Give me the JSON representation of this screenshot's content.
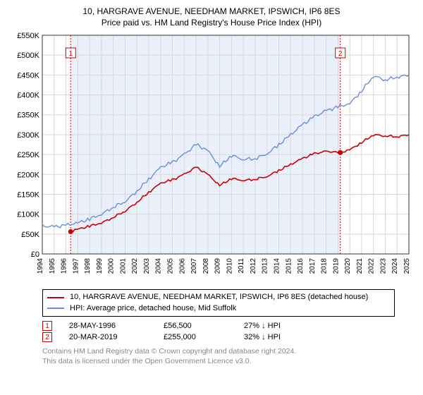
{
  "title_line1": "10, HARGRAVE AVENUE, NEEDHAM MARKET, IPSWICH, IP6 8ES",
  "title_line2": "Price paid vs. HM Land Registry's House Price Index (HPI)",
  "chart": {
    "type": "line",
    "background_color": "#ffffff",
    "plot_bg_shaded": "#e9f0fa",
    "plot_bg_unshaded": "#ffffff",
    "grid_color": "#d8d8d8",
    "axis_color": "#333333",
    "y": {
      "label_prefix": "£",
      "min": 0,
      "max": 550,
      "step": 50,
      "ticks": [
        "£0",
        "£50K",
        "£100K",
        "£150K",
        "£200K",
        "£250K",
        "£300K",
        "£350K",
        "£400K",
        "£450K",
        "£500K",
        "£550K"
      ]
    },
    "x": {
      "years": [
        1994,
        1995,
        1996,
        1997,
        1998,
        1999,
        2000,
        2001,
        2002,
        2003,
        2004,
        2005,
        2006,
        2007,
        2008,
        2009,
        2010,
        2011,
        2012,
        2013,
        2014,
        2015,
        2016,
        2017,
        2018,
        2019,
        2020,
        2021,
        2022,
        2023,
        2024,
        2025
      ]
    },
    "shaded_range": {
      "from_year": 1996.4,
      "to_year": 2019.2
    },
    "series": [
      {
        "name": "address",
        "color": "#cc0000",
        "width": 1.6,
        "points": [
          [
            1996.4,
            56
          ],
          [
            1997,
            62
          ],
          [
            1998,
            70
          ],
          [
            1999,
            78
          ],
          [
            2000,
            92
          ],
          [
            2001,
            108
          ],
          [
            2002,
            130
          ],
          [
            2003,
            155
          ],
          [
            2004,
            178
          ],
          [
            2005,
            186
          ],
          [
            2006,
            200
          ],
          [
            2007,
            218
          ],
          [
            2008,
            200
          ],
          [
            2009,
            172
          ],
          [
            2010,
            190
          ],
          [
            2011,
            185
          ],
          [
            2012,
            188
          ],
          [
            2013,
            195
          ],
          [
            2014,
            210
          ],
          [
            2015,
            225
          ],
          [
            2016,
            240
          ],
          [
            2017,
            252
          ],
          [
            2018,
            258
          ],
          [
            2019.2,
            255
          ],
          [
            2020,
            262
          ],
          [
            2021,
            280
          ],
          [
            2022,
            300
          ],
          [
            2023,
            297
          ],
          [
            2024,
            295
          ],
          [
            2025,
            300
          ]
        ]
      },
      {
        "name": "hpi",
        "color": "#6a8fd8",
        "width": 1.4,
        "points": [
          [
            1994,
            70
          ],
          [
            1995,
            68
          ],
          [
            1996,
            72
          ],
          [
            1997,
            78
          ],
          [
            1998,
            88
          ],
          [
            1999,
            100
          ],
          [
            2000,
            118
          ],
          [
            2001,
            132
          ],
          [
            2002,
            158
          ],
          [
            2003,
            188
          ],
          [
            2004,
            218
          ],
          [
            2005,
            230
          ],
          [
            2006,
            250
          ],
          [
            2007,
            275
          ],
          [
            2008,
            260
          ],
          [
            2009,
            220
          ],
          [
            2010,
            248
          ],
          [
            2011,
            238
          ],
          [
            2012,
            240
          ],
          [
            2013,
            252
          ],
          [
            2014,
            275
          ],
          [
            2015,
            300
          ],
          [
            2016,
            325
          ],
          [
            2017,
            345
          ],
          [
            2018,
            360
          ],
          [
            2019,
            370
          ],
          [
            2020,
            378
          ],
          [
            2021,
            410
          ],
          [
            2022,
            448
          ],
          [
            2023,
            438
          ],
          [
            2024,
            445
          ],
          [
            2025,
            450
          ]
        ]
      }
    ],
    "markers": [
      {
        "n": "1",
        "year": 1996.4,
        "value": 56,
        "color": "#cc0000"
      },
      {
        "n": "2",
        "year": 2019.2,
        "value": 255,
        "color": "#cc0000"
      }
    ]
  },
  "legend": {
    "series1_color": "#cc0000",
    "series1_text": "10, HARGRAVE AVENUE, NEEDHAM MARKET, IPSWICH, IP6 8ES (detached house)",
    "series2_color": "#6a8fd8",
    "series2_text": "HPI: Average price, detached house, Mid Suffolk"
  },
  "transactions": [
    {
      "n": "1",
      "color": "#cc0000",
      "date": "28-MAY-1996",
      "price": "£56,500",
      "delta": "27% ↓ HPI"
    },
    {
      "n": "2",
      "color": "#cc0000",
      "date": "20-MAR-2019",
      "price": "£255,000",
      "delta": "32% ↓ HPI"
    }
  ],
  "footer_line1": "Contains HM Land Registry data © Crown copyright and database right 2024.",
  "footer_line2": "This data is licensed under the Open Government Licence v3.0."
}
